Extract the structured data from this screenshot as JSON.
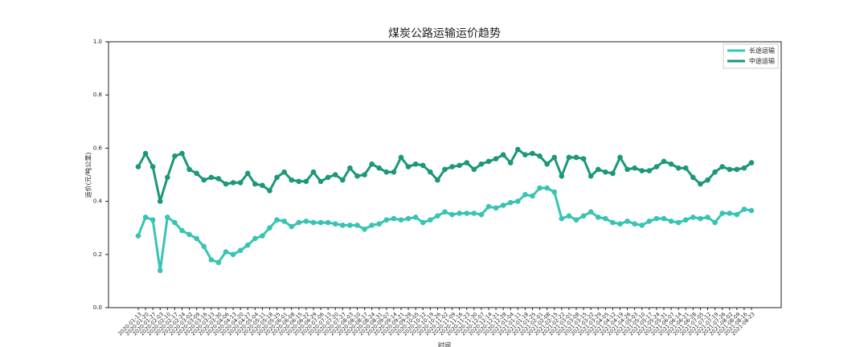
{
  "chart_data": {
    "type": "line",
    "title": "煤炭公路运输运价趋势",
    "ylabel": "运价(元/吨公里)",
    "xlabel": "时间",
    "categories": [
      "2020-01-13",
      "2020-01-20",
      "2020-01-27",
      "2020-02-03",
      "2020-02-10",
      "2020-02-17",
      "2020-02-24",
      "2020-03-02",
      "2020-03-09",
      "2020-03-16",
      "2020-03-23",
      "2020-03-30",
      "2020-04-06",
      "2020-04-13",
      "2020-04-20",
      "2020-04-27",
      "2020-05-04",
      "2020-05-11",
      "2020-05-18",
      "2020-05-25",
      "2020-06-01",
      "2020-06-08",
      "2020-06-15",
      "2020-06-22",
      "2020-06-29",
      "2020-07-06",
      "2020-07-13",
      "2020-07-20",
      "2020-07-27",
      "2020-08-03",
      "2020-08-10",
      "2020-08-17",
      "2020-08-24",
      "2020-08-31",
      "2020-09-07",
      "2020-09-14",
      "2020-09-21",
      "2020-09-28",
      "2020-10-05",
      "2020-10-12",
      "2020-10-19",
      "2020-10-26",
      "2020-11-02",
      "2020-11-09",
      "2020-11-16",
      "2020-11-23",
      "2020-11-30",
      "2020-12-07",
      "2020-12-14",
      "2020-12-21",
      "2020-12-28",
      "2021-01-04",
      "2021-01-11",
      "2021-01-18",
      "2021-01-25",
      "2021-02-01",
      "2021-02-08",
      "2021-02-15",
      "2021-02-22",
      "2021-03-01",
      "2021-03-08",
      "2021-03-15",
      "2021-03-22",
      "2021-03-29",
      "2021-04-05",
      "2021-04-12",
      "2021-04-19",
      "2021-04-26",
      "2021-05-03",
      "2021-05-10",
      "2021-05-17",
      "2021-05-24",
      "2021-05-31",
      "2021-06-07",
      "2021-06-14",
      "2021-06-21",
      "2021-06-28",
      "2021-07-05",
      "2021-07-12",
      "2021-07-19",
      "2021-07-26",
      "2021-08-02",
      "2021-08-09",
      "2021-08-16",
      "2021-08-23"
    ],
    "series": [
      {
        "name": "长途运输",
        "color": "#38c4b2",
        "values": [
          0.27,
          0.34,
          0.33,
          0.14,
          0.34,
          0.32,
          0.29,
          0.275,
          0.26,
          0.23,
          0.18,
          0.17,
          0.21,
          0.2,
          0.215,
          0.235,
          0.26,
          0.27,
          0.3,
          0.33,
          0.325,
          0.305,
          0.32,
          0.325,
          0.32,
          0.32,
          0.32,
          0.315,
          0.31,
          0.31,
          0.31,
          0.295,
          0.31,
          0.315,
          0.33,
          0.335,
          0.33,
          0.335,
          0.34,
          0.32,
          0.33,
          0.345,
          0.36,
          0.35,
          0.355,
          0.355,
          0.355,
          0.35,
          0.38,
          0.375,
          0.385,
          0.395,
          0.4,
          0.425,
          0.42,
          0.45,
          0.45,
          0.435,
          0.335,
          0.345,
          0.33,
          0.345,
          0.36,
          0.34,
          0.335,
          0.32,
          0.315,
          0.325,
          0.315,
          0.31,
          0.325,
          0.335,
          0.335,
          0.325,
          0.32,
          0.33,
          0.34,
          0.335,
          0.34,
          0.32,
          0.355,
          0.355,
          0.35,
          0.37,
          0.365
        ]
      },
      {
        "name": "中途运输",
        "color": "#1b977a",
        "values": [
          0.53,
          0.58,
          0.53,
          0.4,
          0.49,
          0.57,
          0.58,
          0.52,
          0.505,
          0.48,
          0.49,
          0.485,
          0.465,
          0.47,
          0.47,
          0.505,
          0.465,
          0.46,
          0.44,
          0.49,
          0.51,
          0.48,
          0.475,
          0.475,
          0.51,
          0.475,
          0.49,
          0.5,
          0.48,
          0.525,
          0.495,
          0.5,
          0.54,
          0.525,
          0.51,
          0.51,
          0.565,
          0.53,
          0.54,
          0.535,
          0.51,
          0.48,
          0.52,
          0.53,
          0.535,
          0.545,
          0.52,
          0.54,
          0.55,
          0.56,
          0.575,
          0.545,
          0.595,
          0.575,
          0.58,
          0.57,
          0.54,
          0.565,
          0.495,
          0.565,
          0.565,
          0.56,
          0.495,
          0.52,
          0.51,
          0.505,
          0.565,
          0.52,
          0.525,
          0.515,
          0.515,
          0.53,
          0.55,
          0.54,
          0.525,
          0.525,
          0.49,
          0.465,
          0.48,
          0.51,
          0.53,
          0.52,
          0.52,
          0.525,
          0.545
        ]
      }
    ],
    "ylim": [
      0,
      1
    ],
    "yticks": [
      {
        "value": 0,
        "label": "0.0"
      },
      0.2,
      0.4,
      0.6,
      0.8,
      {
        "value": 1,
        "label": "1.0"
      }
    ],
    "legend": "upper right"
  }
}
